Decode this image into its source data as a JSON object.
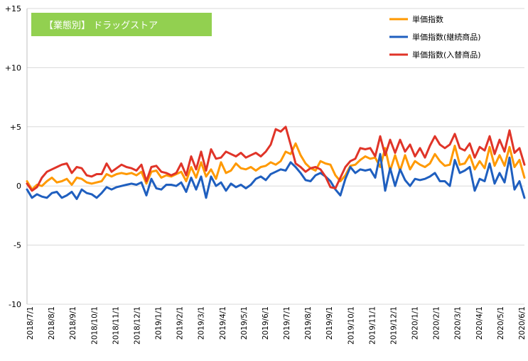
{
  "chart_data": {
    "type": "line",
    "title": "【業態別】 ドラッグストア",
    "title_box_color": "#92D050",
    "ylim": [
      -10,
      15
    ],
    "y_ticks": [
      -10,
      -5,
      0,
      5,
      10,
      15
    ],
    "y_tick_labels": [
      "-10",
      "-5",
      "0",
      "+5",
      "+10",
      "+15"
    ],
    "grid": "horizontal",
    "legend_position": "top-right",
    "x_tick_labels": [
      "2018/7/1",
      "2018/8/1",
      "2018/9/1",
      "2018/10/1",
      "2018/11/1",
      "2018/12/1",
      "2019/1/1",
      "2019/2/1",
      "2019/3/1",
      "2019/4/1",
      "2019/5/1",
      "2019/6/1",
      "2019/7/1",
      "2019/8/1",
      "2019/9/1",
      "2019/10/1",
      "2019/11/1",
      "2019/12/1",
      "2020/1/1",
      "2020/2/1",
      "2020/3/1",
      "2020/4/1",
      "2020/5/1",
      "2020/6/1"
    ],
    "series": [
      {
        "name": "単価指数",
        "color": "#FF9900",
        "values": [
          0.4,
          -0.3,
          0.1,
          0.0,
          0.4,
          0.7,
          0.3,
          0.4,
          0.6,
          0.1,
          0.7,
          0.6,
          0.3,
          0.2,
          0.3,
          0.4,
          1.0,
          0.8,
          1.0,
          1.1,
          1.0,
          1.1,
          0.9,
          1.2,
          0.2,
          1.2,
          1.3,
          0.7,
          0.9,
          0.8,
          1.0,
          1.2,
          0.4,
          1.6,
          0.7,
          2.0,
          0.8,
          1.4,
          0.6,
          2.0,
          1.1,
          1.3,
          1.9,
          1.5,
          1.4,
          1.6,
          1.3,
          1.6,
          1.7,
          2.0,
          1.8,
          2.1,
          2.9,
          2.7,
          3.6,
          2.6,
          1.9,
          1.5,
          1.3,
          2.1,
          1.9,
          1.8,
          0.9,
          0.4,
          0.9,
          1.7,
          1.8,
          2.2,
          2.5,
          2.3,
          2.4,
          1.6,
          3.2,
          1.3,
          2.6,
          1.3,
          2.6,
          1.4,
          2.1,
          1.8,
          1.6,
          1.9,
          2.7,
          2.1,
          1.7,
          1.8,
          3.4,
          1.8,
          1.9,
          2.6,
          1.4,
          2.1,
          1.5,
          3.3,
          1.7,
          2.6,
          1.7,
          3.3,
          1.6,
          2.2,
          0.7
        ]
      },
      {
        "name": "単価指数(継続商品)",
        "color": "#1F5FBF",
        "values": [
          -0.3,
          -1.0,
          -0.7,
          -0.9,
          -1.0,
          -0.6,
          -0.5,
          -1.0,
          -0.8,
          -0.5,
          -1.1,
          -0.3,
          -0.6,
          -0.7,
          -1.0,
          -0.6,
          -0.1,
          -0.3,
          -0.1,
          0.0,
          0.1,
          0.2,
          0.1,
          0.3,
          -0.8,
          0.6,
          -0.2,
          -0.3,
          0.1,
          0.1,
          0.0,
          0.3,
          -0.5,
          0.7,
          -0.3,
          0.8,
          -1.0,
          0.8,
          0.0,
          0.3,
          -0.4,
          0.2,
          -0.1,
          0.1,
          -0.2,
          0.1,
          0.6,
          0.8,
          0.5,
          1.0,
          1.2,
          1.4,
          1.3,
          2.0,
          1.6,
          1.1,
          0.5,
          0.4,
          0.9,
          1.1,
          0.8,
          0.4,
          -0.3,
          -0.8,
          0.6,
          1.6,
          1.1,
          1.4,
          1.3,
          1.4,
          0.7,
          2.7,
          -0.4,
          1.5,
          0.0,
          1.4,
          0.5,
          0.0,
          0.6,
          0.5,
          0.6,
          0.8,
          1.1,
          0.4,
          0.4,
          0.0,
          2.2,
          1.1,
          1.3,
          1.6,
          -0.4,
          0.6,
          0.4,
          1.9,
          0.2,
          1.1,
          0.3,
          2.4,
          -0.3,
          0.4,
          -1.0
        ]
      },
      {
        "name": "単価指数(入替商品)",
        "color": "#E03428",
        "values": [
          0.2,
          -0.4,
          -0.1,
          0.7,
          1.2,
          1.4,
          1.6,
          1.8,
          1.9,
          1.1,
          1.6,
          1.5,
          0.9,
          0.8,
          1.0,
          1.0,
          1.9,
          1.2,
          1.5,
          1.8,
          1.6,
          1.5,
          1.3,
          1.8,
          0.4,
          1.6,
          1.7,
          1.2,
          1.1,
          0.9,
          1.1,
          1.9,
          0.9,
          2.5,
          1.4,
          2.9,
          1.3,
          3.1,
          2.3,
          2.4,
          2.9,
          2.7,
          2.5,
          2.8,
          2.4,
          2.6,
          2.8,
          2.5,
          2.9,
          3.5,
          4.8,
          4.6,
          5.0,
          3.5,
          1.9,
          1.6,
          1.2,
          1.5,
          1.6,
          1.4,
          0.8,
          -0.1,
          -0.2,
          0.7,
          1.6,
          2.1,
          2.3,
          3.2,
          3.1,
          3.2,
          2.5,
          4.2,
          2.6,
          3.9,
          2.8,
          3.9,
          2.9,
          3.5,
          2.5,
          3.2,
          2.4,
          3.4,
          4.2,
          3.5,
          3.2,
          3.5,
          4.4,
          3.2,
          3.0,
          3.6,
          2.4,
          3.3,
          3.0,
          4.2,
          2.7,
          3.9,
          2.9,
          4.7,
          2.8,
          3.2,
          1.8
        ]
      }
    ]
  }
}
